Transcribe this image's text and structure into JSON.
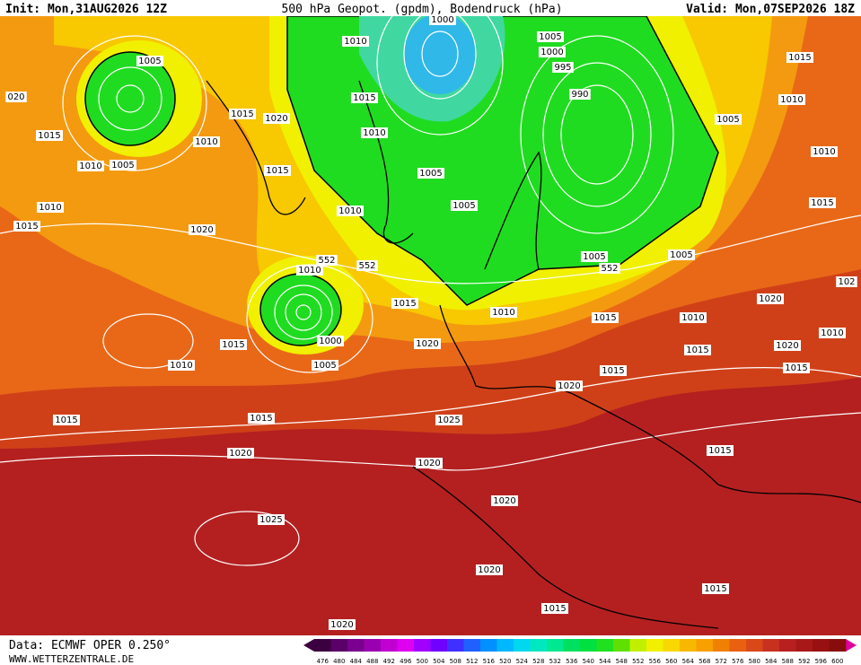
{
  "header": {
    "init": "Init: Mon,31AUG2026 12Z",
    "title": "500 hPa Geopot. (gpdm), Bodendruck (hPa)",
    "valid": "Valid: Mon,07SEP2026 18Z"
  },
  "footer": {
    "source": "Data: ECMWF OPER 0.250°",
    "site": "WWW.WETTERZENTRALE.DE"
  },
  "isobar_labels": [
    "1010",
    "1000",
    "1005",
    "1000",
    "995",
    "990",
    "1015",
    "1010",
    "1005",
    "1010",
    "1015",
    "1005",
    "020",
    "1015",
    "1015",
    "1020",
    "1010",
    "1010",
    "1005",
    "1015",
    "1015",
    "1010",
    "1005",
    "1005",
    "1010",
    "1010",
    "1015",
    "1020",
    "552",
    "552",
    "1010",
    "1005",
    "552",
    "1005",
    "1015",
    "1010",
    "1015",
    "1020",
    "102",
    "1010",
    "1010",
    "1020",
    "1000",
    "1005",
    "1015",
    "1010",
    "1020",
    "1015",
    "1015",
    "1015",
    "1020",
    "1015",
    "1015",
    "1025",
    "1020",
    "1020",
    "1015",
    "1020",
    "1025",
    "1020",
    "1015",
    "1015",
    "1020"
  ],
  "colorbar": {
    "ticks": [
      476,
      480,
      484,
      488,
      492,
      496,
      500,
      504,
      508,
      512,
      516,
      520,
      524,
      528,
      532,
      536,
      540,
      544,
      548,
      552,
      556,
      560,
      564,
      568,
      572,
      576,
      580,
      584,
      588,
      592,
      596,
      600
    ],
    "colors": [
      "#3b0040",
      "#5a0068",
      "#7a0090",
      "#9a00b0",
      "#c000d0",
      "#e000f0",
      "#a000ff",
      "#7000ff",
      "#4030ff",
      "#2060ff",
      "#0090ff",
      "#00b8ff",
      "#00d8f0",
      "#00e8c0",
      "#00e890",
      "#00e060",
      "#00e040",
      "#20e020",
      "#60e000",
      "#c0f000",
      "#f0f000",
      "#f8d800",
      "#f8b800",
      "#f8a000",
      "#f08000",
      "#e86010",
      "#d84818",
      "#c83020",
      "#b82020",
      "#a81818",
      "#981010",
      "#880c0c"
    ]
  }
}
